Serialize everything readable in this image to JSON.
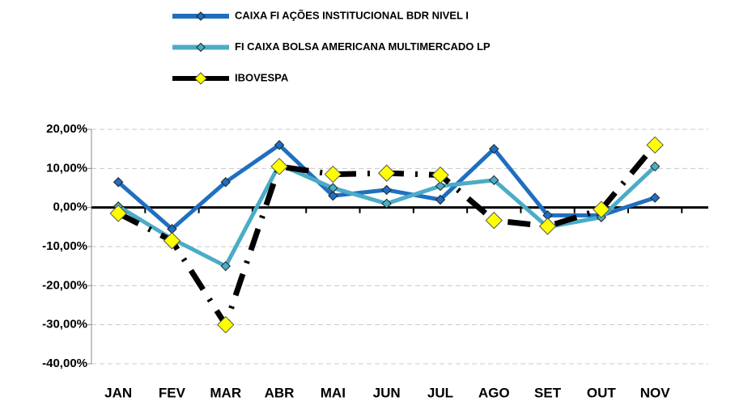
{
  "chart_data": {
    "type": "line",
    "categories": [
      "JAN",
      "FEV",
      "MAR",
      "ABR",
      "MAI",
      "JUN",
      "JUL",
      "AGO",
      "SET",
      "OUT",
      "NOV"
    ],
    "series": [
      {
        "name": "CAIXA FI AÇÕES INSTITUCIONAL BDR NIVEL I",
        "color": "#1f6fc0",
        "marker_color": "#1f6fc0",
        "dashed": false,
        "values": [
          6.5,
          -5.5,
          6.5,
          16,
          3,
          4.5,
          2,
          15,
          -2,
          -2,
          2.5
        ]
      },
      {
        "name": "FI CAIXA BOLSA AMERICANA MULTIMERCADO LP",
        "color": "#4bacc6",
        "marker_color": "#4bacc6",
        "dashed": false,
        "values": [
          0.3,
          -8,
          -15,
          11,
          5,
          1,
          5.5,
          7,
          -5,
          -2.5,
          10.5
        ]
      },
      {
        "name": "IBOVESPA",
        "color": "#000000",
        "marker_color": "#ffff00",
        "dashed": true,
        "values": [
          -1.5,
          -8.5,
          -30,
          10.5,
          8.5,
          8.8,
          8.3,
          -3.3,
          -4.8,
          -0.5,
          16
        ]
      }
    ],
    "ylim": [
      -40,
      20
    ],
    "yticks": [
      {
        "value": -40,
        "label": "-40,00%"
      },
      {
        "value": -30,
        "label": "-30,00%"
      },
      {
        "value": -20,
        "label": "-20,00%"
      },
      {
        "value": -10,
        "label": "-10,00%"
      },
      {
        "value": 0,
        "label": "0,00%"
      },
      {
        "value": 10,
        "label": "10,00%"
      },
      {
        "value": 20,
        "label": "20,00%"
      }
    ],
    "grid": true,
    "legend": "top"
  }
}
